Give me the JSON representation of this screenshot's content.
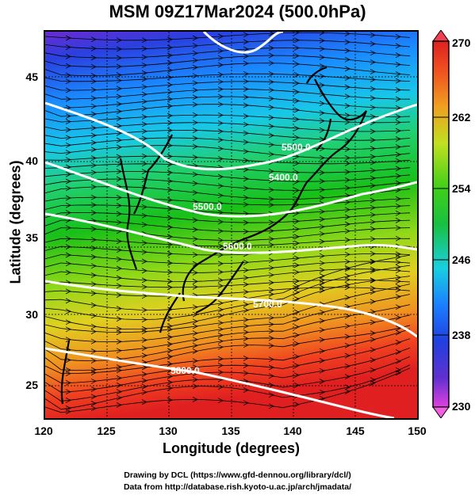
{
  "title": "MSM 09Z17Mar2024 (500.0hPa)",
  "axes": {
    "xlabel": "Longitude (degrees)",
    "ylabel": "Latitude  (degrees)",
    "xticks": [
      "120",
      "125",
      "130",
      "135",
      "140",
      "145",
      "150"
    ],
    "yticks": [
      "45",
      "40",
      "35",
      "30",
      "25"
    ]
  },
  "colorbar": {
    "min": 230,
    "max": 270,
    "labels": [
      "270",
      "262",
      "254",
      "246",
      "238",
      "230"
    ],
    "colors": [
      "#c000c0",
      "#6030d0",
      "#2040e0",
      "#1a90ff",
      "#18d0e0",
      "#20d060",
      "#10c010",
      "#80d818",
      "#d0e020",
      "#f0c020",
      "#f08020",
      "#f03020",
      "#e02020"
    ]
  },
  "contours": [
    "5500.0",
    "5400.0",
    "5500.0",
    "5600.0",
    "5700.0",
    "5800.0"
  ],
  "credits": {
    "line1": "Drawing by DCL (https://www.gfd-dennou.org/library/dcl/)",
    "line2": "Data from http://database.rish.kyoto-u.ac.jp/arch/jmadata/"
  }
}
